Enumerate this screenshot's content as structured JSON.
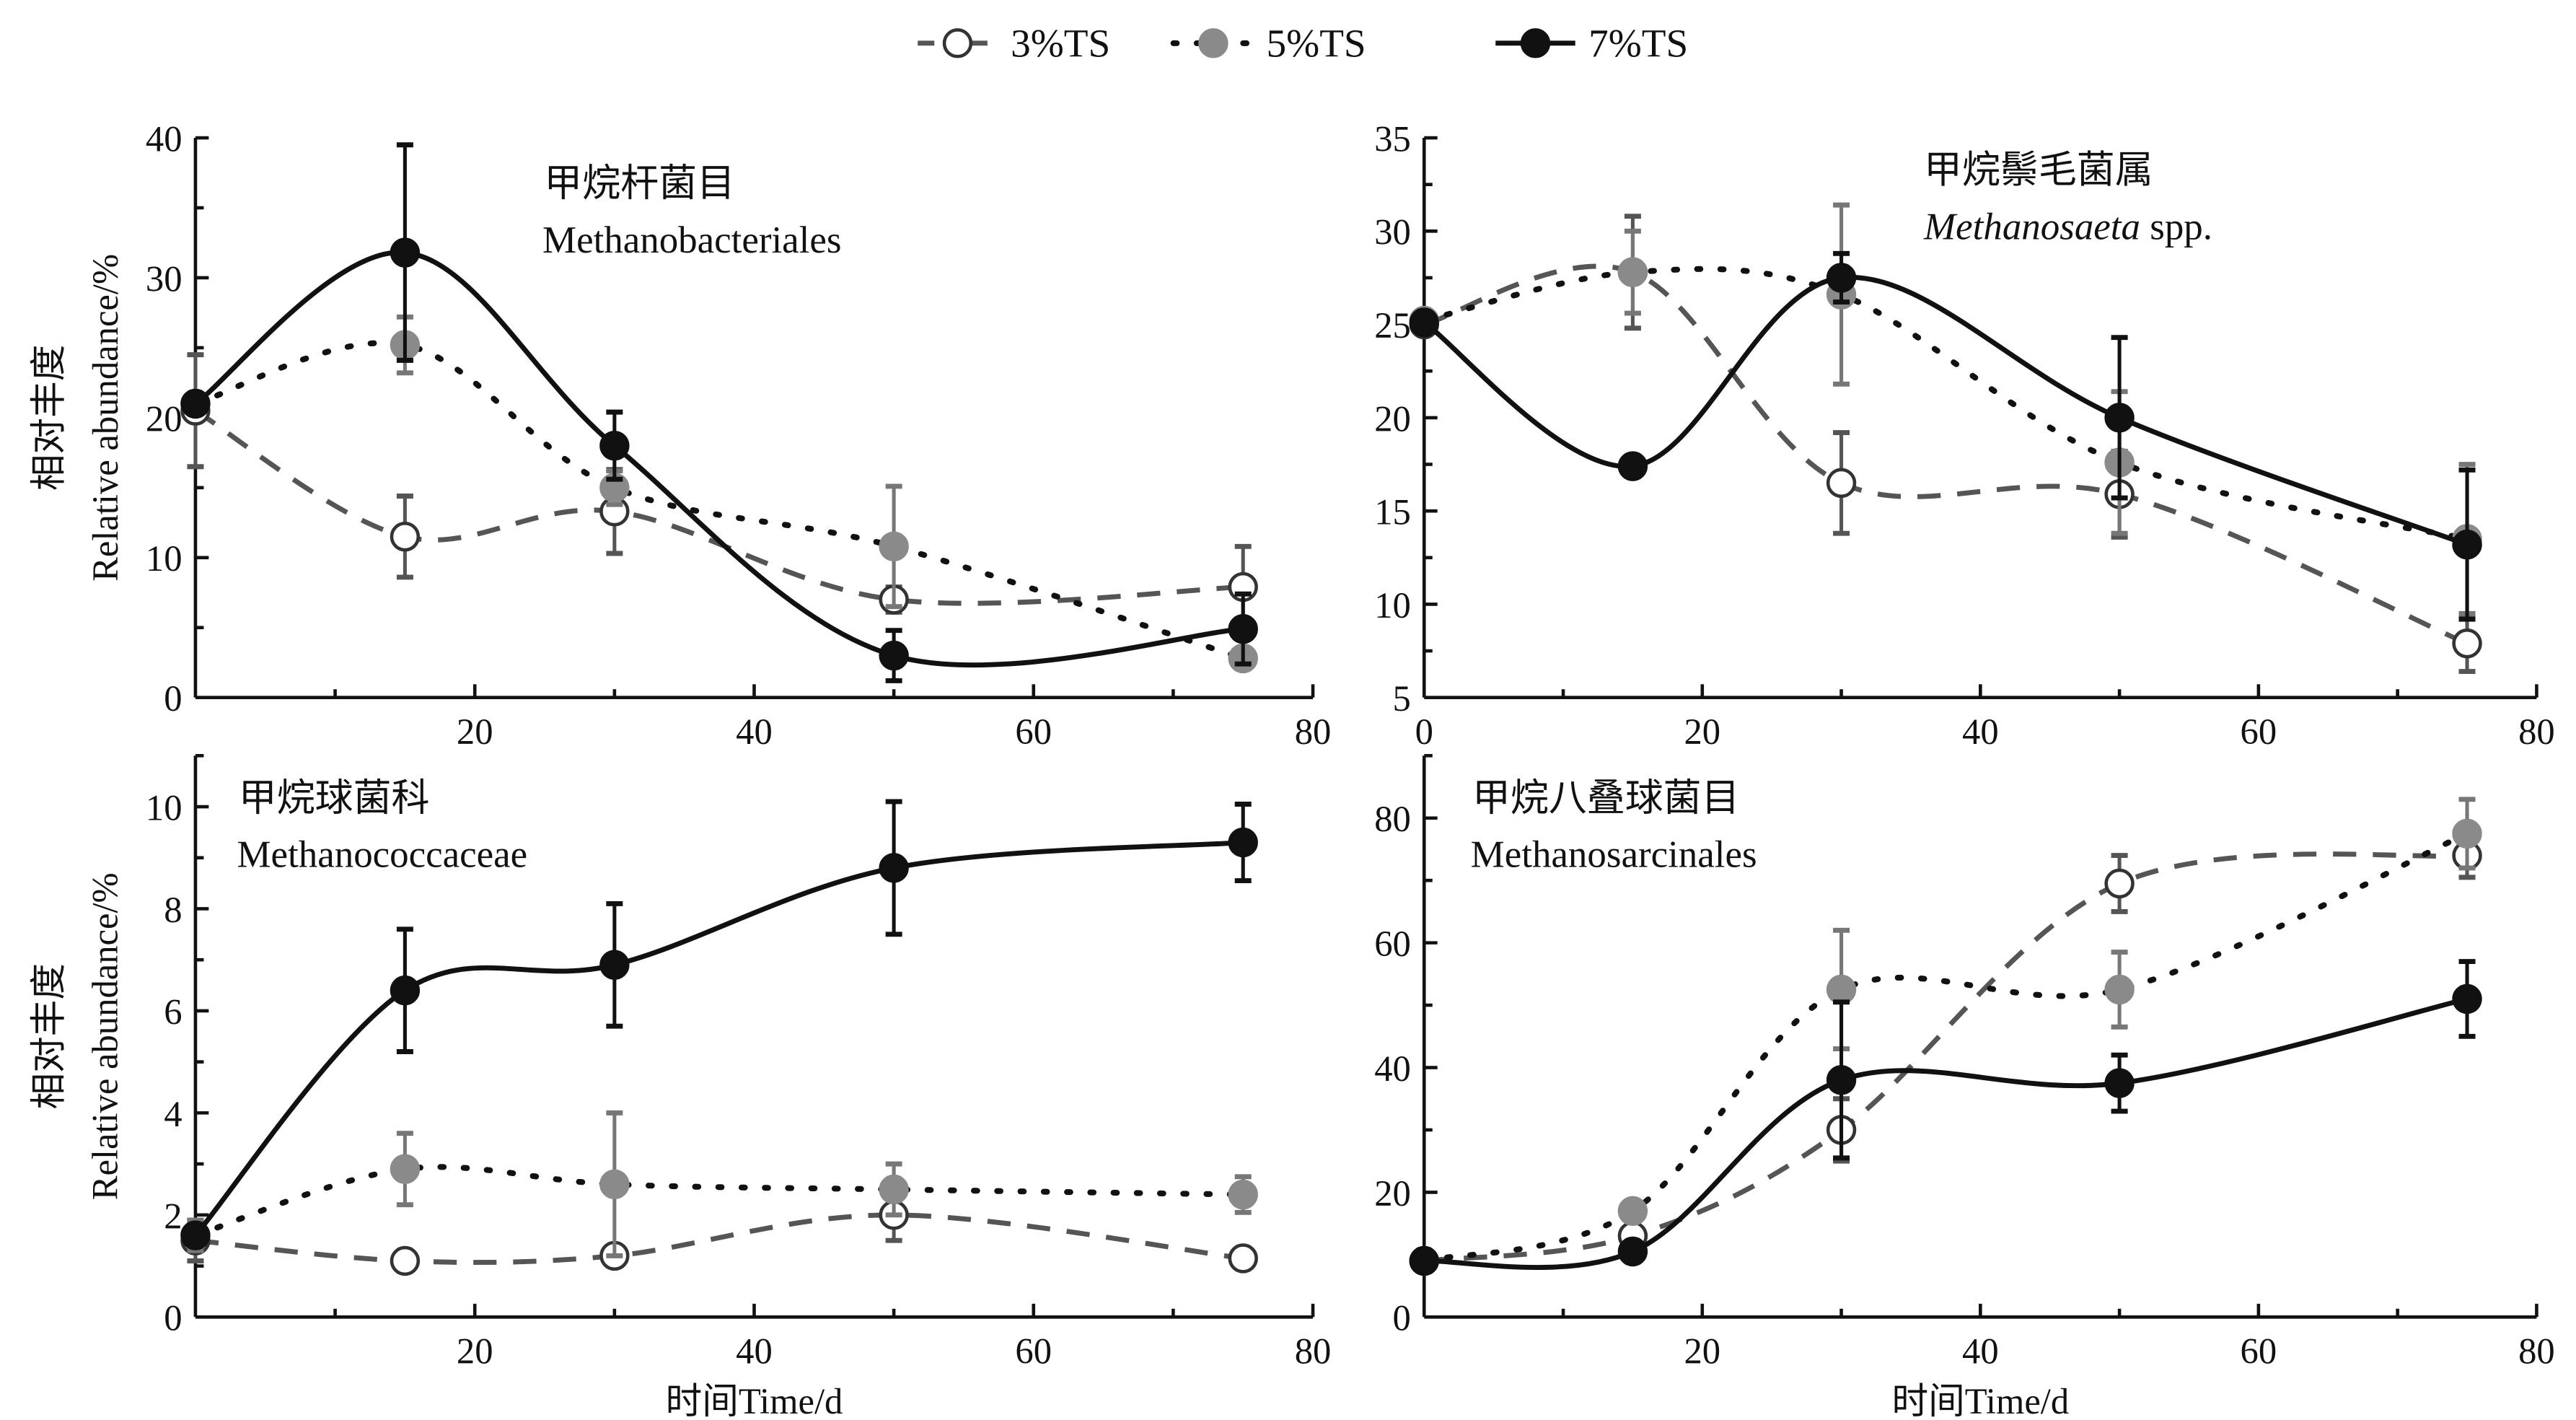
{
  "legend": [
    {
      "label": "3%TS",
      "marker": "open-circle",
      "line": "dashed",
      "color": "#444444"
    },
    {
      "label": "5%TS",
      "marker": "gray-filled-circle",
      "line": "dotted",
      "color": "#888888"
    },
    {
      "label": "7%TS",
      "marker": "black-filled-circle",
      "line": "solid",
      "color": "#111111"
    }
  ],
  "chart_data": [
    {
      "type": "line",
      "title_cn": "甲烷杆菌目",
      "title_en": "Methanobacteriales",
      "title_italic": false,
      "xlabel": "",
      "ylabel_cn": "相对丰度",
      "ylabel_en": "Relative abundance/%",
      "xlim": [
        0,
        80
      ],
      "ylim": [
        0,
        40
      ],
      "xticks": [
        20,
        40,
        60,
        80
      ],
      "xtick_labels": [
        "20",
        "40",
        "60",
        "80"
      ],
      "yticks": [
        0,
        10,
        20,
        30,
        40
      ],
      "ytick_labels": [
        "0",
        "10",
        "20",
        "30",
        "40"
      ],
      "x": [
        0,
        15,
        30,
        50,
        75
      ],
      "series": [
        {
          "name": "3%TS",
          "values": [
            20.5,
            11.5,
            13.3,
            7.0,
            7.9
          ],
          "errors": [
            4.0,
            2.9,
            3.0,
            0.9,
            2.9
          ]
        },
        {
          "name": "5%TS",
          "values": [
            21.0,
            25.2,
            15.0,
            10.8,
            2.8
          ],
          "errors": [
            0.5,
            2.0,
            1.2,
            4.3,
            0.5
          ]
        },
        {
          "name": "7%TS",
          "values": [
            21.0,
            31.8,
            18.0,
            3.0,
            4.9
          ],
          "errors": [
            0.5,
            7.7,
            2.4,
            1.8,
            2.5
          ]
        }
      ]
    },
    {
      "type": "line",
      "title_cn": "甲烷鬃毛菌属",
      "title_en_italic": "Methanosaeta",
      "title_en_suffix": " spp.",
      "xlabel": "",
      "ylabel_cn": "",
      "ylabel_en": "",
      "xlim": [
        0,
        80
      ],
      "ylim": [
        5,
        35
      ],
      "xticks": [
        0,
        20,
        40,
        60,
        80
      ],
      "xtick_labels": [
        "0",
        "20",
        "40",
        "60",
        "80"
      ],
      "yticks": [
        5,
        10,
        15,
        20,
        25,
        30,
        35
      ],
      "ytick_labels": [
        "5",
        "10",
        "15",
        "20",
        "25",
        "30",
        "35"
      ],
      "x": [
        0,
        15,
        30,
        50,
        75
      ],
      "series": [
        {
          "name": "3%TS",
          "values": [
            25.0,
            27.8,
            16.5,
            15.9,
            7.9
          ],
          "errors": [
            0.3,
            3.0,
            2.7,
            2.3,
            1.5
          ]
        },
        {
          "name": "5%TS",
          "values": [
            25.2,
            27.8,
            26.6,
            17.6,
            13.5
          ],
          "errors": [
            0.3,
            2.2,
            4.8,
            3.8,
            4.0
          ]
        },
        {
          "name": "7%TS",
          "values": [
            25.1,
            17.4,
            27.5,
            20.0,
            13.2
          ],
          "errors": [
            0.3,
            0.3,
            1.3,
            4.3,
            4.0
          ]
        }
      ]
    },
    {
      "type": "line",
      "title_cn": "甲烷球菌科",
      "title_en": "Methanococcaceae",
      "title_italic": false,
      "xlabel": "时间Time/d",
      "ylabel_cn": "相对丰度",
      "ylabel_en": "Relative abundance/%",
      "xlim": [
        0,
        80
      ],
      "ylim": [
        0,
        11
      ],
      "xticks": [
        20,
        40,
        60,
        80
      ],
      "xtick_labels": [
        "20",
        "40",
        "60",
        "80"
      ],
      "yticks": [
        0,
        2,
        4,
        6,
        8,
        10
      ],
      "ytick_labels": [
        "0",
        "2",
        "4",
        "6",
        "8",
        "10"
      ],
      "x": [
        0,
        15,
        30,
        50,
        75
      ],
      "series": [
        {
          "name": "3%TS",
          "values": [
            1.5,
            1.1,
            1.2,
            2.0,
            1.15
          ],
          "errors": [
            0.4,
            0.2,
            0.15,
            0.5,
            0.15
          ]
        },
        {
          "name": "5%TS",
          "values": [
            1.6,
            2.9,
            2.6,
            2.5,
            2.4
          ],
          "errors": [
            0.3,
            0.7,
            1.4,
            0.5,
            0.35
          ]
        },
        {
          "name": "7%TS",
          "values": [
            1.6,
            6.4,
            6.9,
            8.8,
            9.3
          ],
          "errors": [
            0.2,
            1.2,
            1.2,
            1.3,
            0.75
          ]
        }
      ]
    },
    {
      "type": "line",
      "title_cn": "甲烷八叠球菌目",
      "title_en": "Methanosarcinales",
      "title_italic": false,
      "xlabel": "时间Time/d",
      "ylabel_cn": "",
      "ylabel_en": "",
      "xlim": [
        0,
        80
      ],
      "ylim": [
        0,
        90
      ],
      "xticks": [
        20,
        40,
        60,
        80
      ],
      "xtick_labels": [
        "20",
        "40",
        "60",
        "80"
      ],
      "yticks": [
        0,
        20,
        40,
        60,
        80
      ],
      "ytick_labels": [
        "0",
        "20",
        "40",
        "60",
        "80"
      ],
      "x": [
        0,
        15,
        30,
        50,
        75
      ],
      "series": [
        {
          "name": "3%TS",
          "values": [
            9.0,
            13.0,
            30.0,
            69.5,
            74.0
          ],
          "errors": [
            1.0,
            1.5,
            5.0,
            4.5,
            3.5
          ]
        },
        {
          "name": "5%TS",
          "values": [
            9.0,
            17.0,
            52.5,
            52.5,
            77.5
          ],
          "errors": [
            1.0,
            1.5,
            9.5,
            6.0,
            5.5
          ]
        },
        {
          "name": "7%TS",
          "values": [
            9.0,
            10.5,
            38.0,
            37.5,
            51.0
          ],
          "errors": [
            1.0,
            0.8,
            12.5,
            4.5,
            6.0
          ]
        }
      ]
    }
  ]
}
